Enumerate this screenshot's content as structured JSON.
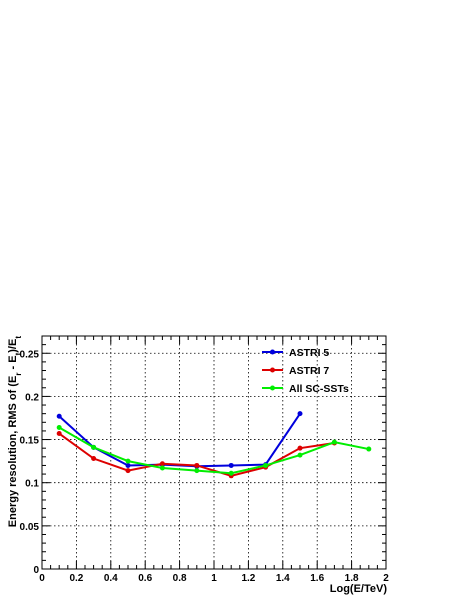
{
  "chart_data": {
    "type": "line",
    "title": "",
    "xlabel": "Log(E/TeV)",
    "ylabel": "Energy resolution, RMS of (E_r - E_t)/E_t",
    "xlim": [
      0,
      2
    ],
    "ylim": [
      0,
      0.27
    ],
    "x_ticks": [
      "0",
      "0.2",
      "0.4",
      "0.6",
      "0.8",
      "1",
      "1.2",
      "1.4",
      "1.6",
      "1.8",
      "2"
    ],
    "x_tick_values": [
      0,
      0.2,
      0.4,
      0.6,
      0.8,
      1.0,
      1.2,
      1.4,
      1.6,
      1.8,
      2.0
    ],
    "y_ticks": [
      "0",
      "0.05",
      "0.1",
      "0.15",
      "0.2",
      "0.25"
    ],
    "y_tick_values": [
      0,
      0.05,
      0.1,
      0.15,
      0.2,
      0.25
    ],
    "grid": true,
    "legend_position": "top-right",
    "series": [
      {
        "name": "ASTRI 5",
        "color": "#0000dd",
        "x": [
          0.1,
          0.3,
          0.5,
          0.7,
          0.9,
          1.1,
          1.3,
          1.5
        ],
        "values": [
          0.177,
          0.141,
          0.12,
          0.121,
          0.119,
          0.12,
          0.121,
          0.18
        ]
      },
      {
        "name": "ASTRI 7",
        "color": "#dd0000",
        "x": [
          0.1,
          0.3,
          0.5,
          0.7,
          0.9,
          1.1,
          1.3,
          1.5,
          1.7
        ],
        "values": [
          0.157,
          0.128,
          0.114,
          0.122,
          0.12,
          0.108,
          0.118,
          0.14,
          0.146
        ]
      },
      {
        "name": "All SC-SSTs",
        "color": "#00ee00",
        "x": [
          0.1,
          0.3,
          0.5,
          0.7,
          0.9,
          1.1,
          1.3,
          1.5,
          1.7,
          1.9
        ],
        "values": [
          0.164,
          0.141,
          0.125,
          0.117,
          0.114,
          0.111,
          0.12,
          0.132,
          0.147,
          0.139
        ]
      }
    ]
  }
}
